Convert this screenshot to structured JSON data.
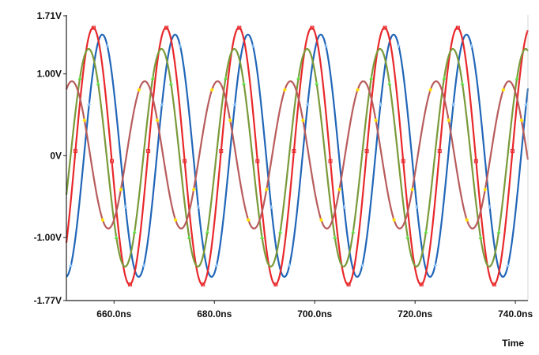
{
  "chart_data": {
    "type": "line",
    "xlabel": "Time",
    "ylabel": "",
    "xlim": [
      650.5,
      742.5
    ],
    "ylim": [
      -1.77,
      1.71
    ],
    "grid": false,
    "legend": "none",
    "y_ticks": [
      {
        "value": 1.71,
        "label": "1.71V"
      },
      {
        "value": 1.0,
        "label": "1.00V"
      },
      {
        "value": 0.0,
        "label": "0V"
      },
      {
        "value": -1.0,
        "label": "-1.00V"
      },
      {
        "value": -1.77,
        "label": "-1.77V"
      }
    ],
    "x_ticks": [
      {
        "value": 660,
        "label": "660.0ns"
      },
      {
        "value": 680,
        "label": "680.0ns"
      },
      {
        "value": 700,
        "label": "700.0ns"
      },
      {
        "value": 720,
        "label": "720.0ns"
      },
      {
        "value": 740,
        "label": "740.0ns"
      }
    ],
    "series": [
      {
        "color": "#2166b8",
        "marker": "+",
        "amplitude": 1.48,
        "period": 14.52,
        "peak_time": 657.65,
        "offset": 0.0
      },
      {
        "color": "#e8282b",
        "marker": "square",
        "amplitude": 1.57,
        "period": 14.52,
        "peak_time": 655.84,
        "offset": -0.005
      },
      {
        "color": "#7a9a3a",
        "marker": "triangle",
        "amplitude": 1.33,
        "period": 14.52,
        "peak_time": 654.93,
        "offset": -0.025
      },
      {
        "color": "#b85c5c",
        "marker": "diamond",
        "amplitude": 0.9,
        "period": 14.52,
        "peak_time": 651.6,
        "offset": 0.01
      }
    ]
  }
}
